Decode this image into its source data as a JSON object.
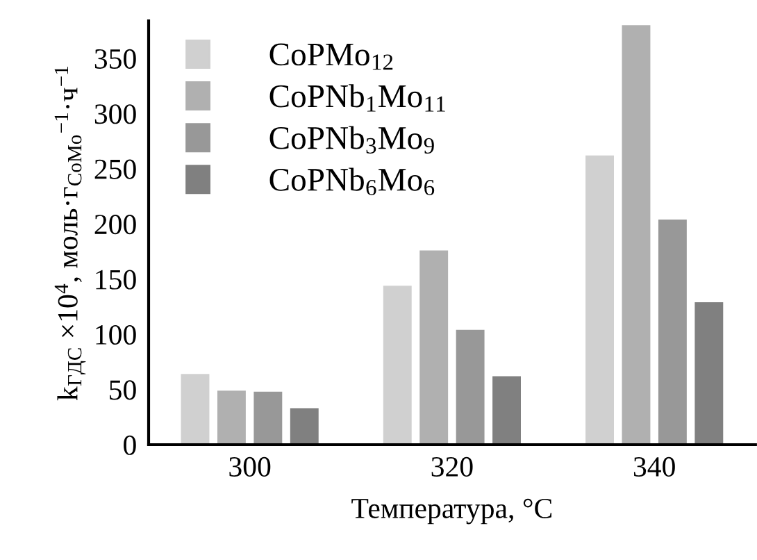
{
  "chart_data": {
    "type": "bar",
    "xlabel": "Температура, °C",
    "ylabel": "k$_{ГДС}$ ×10$^{4}$, моль·г$_{CoMo}$$^{−1}$·ч$^{−1}$",
    "categories": [
      "300",
      "320",
      "340"
    ],
    "series": [
      {
        "name": "CoPMo$_{12}$",
        "color": "#d0d0d0",
        "values": [
          64,
          144,
          262
        ]
      },
      {
        "name": "CoPNb$_{1}$Mo$_{11}$",
        "color": "#b0b0b0",
        "values": [
          49,
          176,
          380
        ]
      },
      {
        "name": "CoPNb$_{3}$Mo$_{9}$",
        "color": "#989898",
        "values": [
          48,
          104,
          204
        ]
      },
      {
        "name": "CoPNb$_{6}$Mo$_{6}$",
        "color": "#808080",
        "values": [
          33,
          62,
          129
        ]
      }
    ],
    "ylim": [
      0,
      384
    ],
    "yticks": [
      0,
      50,
      100,
      150,
      200,
      250,
      300,
      350
    ],
    "grid": false,
    "legend": "top left"
  }
}
